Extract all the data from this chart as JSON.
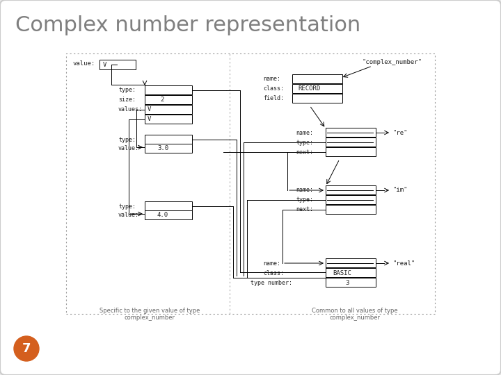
{
  "title": "Complex number representation",
  "title_color": "#7f7f7f",
  "bg_color": "#e8e8e8",
  "slide_number": "7",
  "slide_number_bg": "#d45f1e",
  "left_caption": "Specific to the given value of type\ncomplex_number",
  "right_caption": "Common to all values of type\ncomplex_number"
}
